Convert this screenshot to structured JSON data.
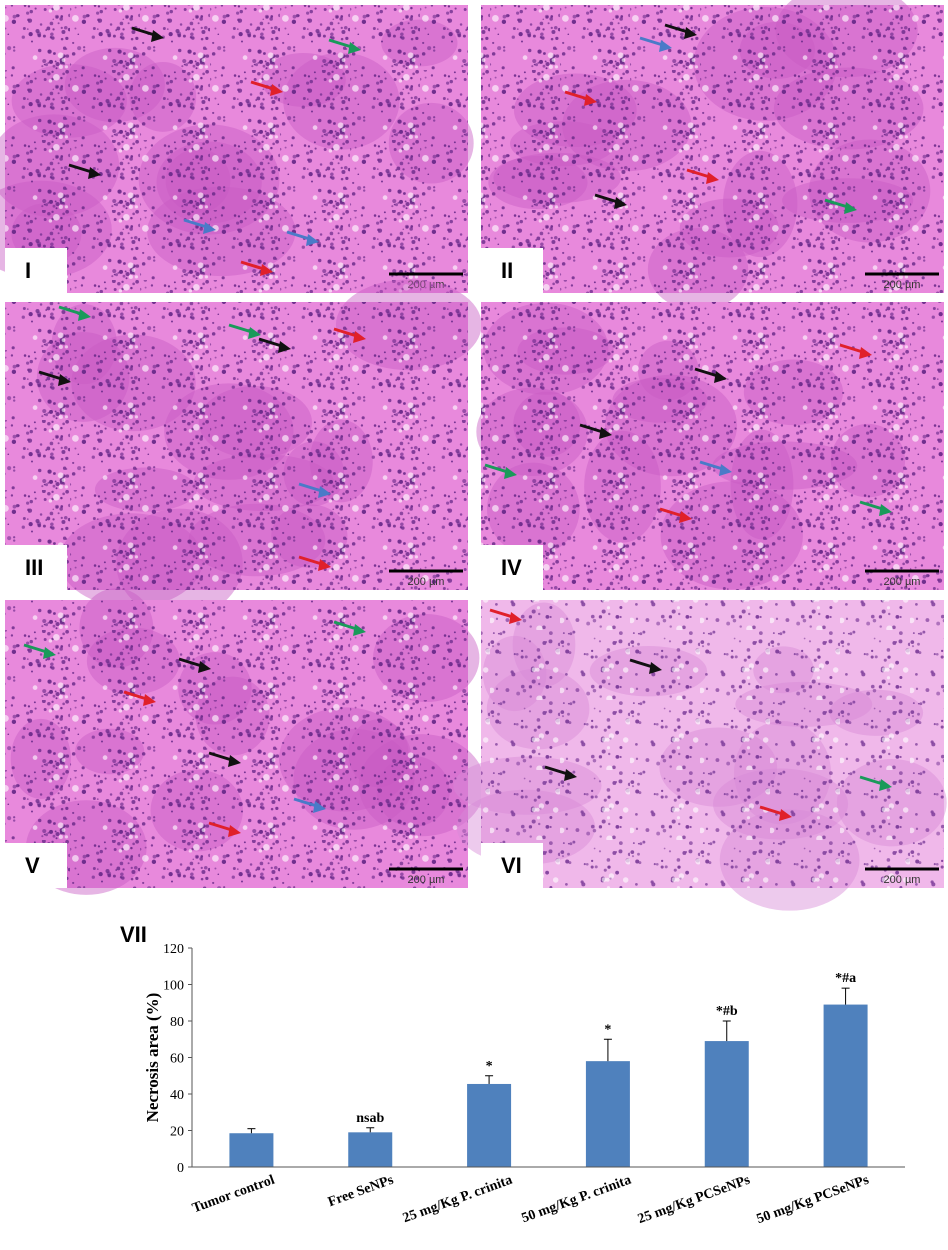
{
  "panels": [
    {
      "label": "I",
      "scale_bar": "200 µm"
    },
    {
      "label": "II",
      "scale_bar": "200 µm"
    },
    {
      "label": "III",
      "scale_bar": "200 µm"
    },
    {
      "label": "IV",
      "scale_bar": "200 µm"
    },
    {
      "label": "V",
      "scale_bar": "200 µm"
    },
    {
      "label": "VI",
      "scale_bar": "200 µm"
    }
  ],
  "chart_data": {
    "type": "bar",
    "panel_label": "VII",
    "y_label": "Necrosis area (%)",
    "categories": [
      "Tumor control",
      "Free SeNPs",
      "25 mg/Kg P. crinita",
      "50 mg/Kg P. crinita",
      "25 mg/Kg PCSeNPs",
      "50 mg/Kg PCSeNPs"
    ],
    "values": [
      18.5,
      19,
      45.5,
      58,
      69,
      89
    ],
    "errors": [
      2.5,
      2.5,
      4.5,
      12,
      11,
      9
    ],
    "annotations": [
      null,
      "nsab",
      "*",
      "*",
      "*#b",
      "*#a"
    ],
    "color": "#4f81bd",
    "ylim": [
      0,
      120
    ],
    "yticks": [
      0,
      20,
      40,
      60,
      80,
      100,
      120
    ],
    "grid": false
  }
}
